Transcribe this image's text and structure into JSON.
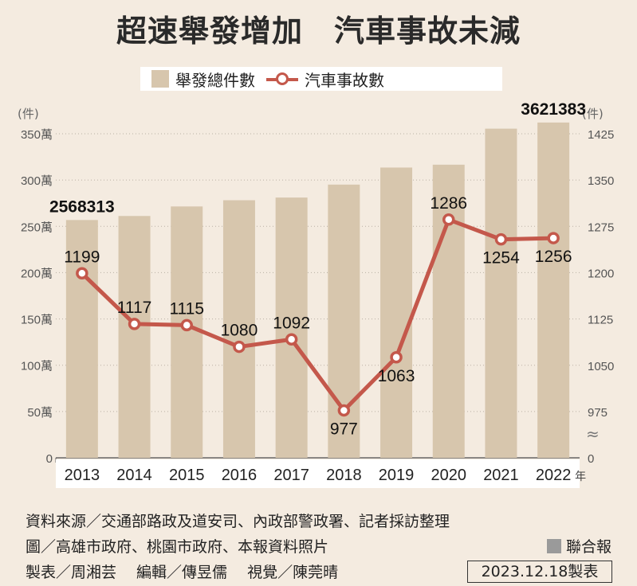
{
  "title": "超速舉發增加　汽車事故未減",
  "legend": {
    "bar_label": "舉發總件數",
    "line_label": "汽車事故數"
  },
  "chart_data": {
    "type": "bar",
    "categories": [
      "2013",
      "2014",
      "2015",
      "2016",
      "2017",
      "2018",
      "2019",
      "2020",
      "2021",
      "2022"
    ],
    "x_suffix": "年",
    "series": [
      {
        "name": "舉發總件數",
        "type": "bar",
        "axis": "left",
        "values": [
          2568313,
          2612000,
          2715000,
          2782000,
          2811000,
          2951000,
          3135000,
          3166000,
          3555000,
          3621383
        ],
        "labeled": {
          "0": "2568313",
          "9": "3621383"
        },
        "color": "#d7c6ad"
      },
      {
        "name": "汽車事故數",
        "type": "line",
        "axis": "right",
        "values": [
          1199,
          1117,
          1115,
          1080,
          1092,
          977,
          1063,
          1286,
          1254,
          1256
        ],
        "labels": [
          "1199",
          "1117",
          "1115",
          "1080",
          "1092",
          "977",
          "1063",
          "1286",
          "1254",
          "1256"
        ],
        "color": "#c4584b"
      }
    ],
    "left_axis": {
      "unit": "(件)",
      "ylim": [
        0,
        3500000
      ],
      "ticks": [
        0,
        500000,
        1000000,
        1500000,
        2000000,
        2500000,
        3000000,
        3500000
      ],
      "tick_labels": [
        "0",
        "50萬",
        "100萬",
        "150萬",
        "200萬",
        "250萬",
        "300萬",
        "350萬"
      ]
    },
    "right_axis": {
      "unit": "(件)",
      "ylim": [
        900,
        1425
      ],
      "ticks": [
        975,
        1050,
        1125,
        1200,
        1275,
        1350,
        1425
      ],
      "tick_labels": [
        "975",
        "1050",
        "1125",
        "1200",
        "1275",
        "1350",
        "1425"
      ],
      "zero_label": "0",
      "break_symbol": "≈"
    },
    "grid": true
  },
  "footer": {
    "source_line1": "資料來源／交通部路政及道安司、內政部警政署、記者採訪整理",
    "source_line2": "圖／高雄市政府、桃園市政府、本報資料照片",
    "credits": "製表／周湘芸　 編輯／傳昱儒　 視覺／陳莞晴",
    "brand": "聯合報",
    "date": "2023.12.18製表"
  }
}
